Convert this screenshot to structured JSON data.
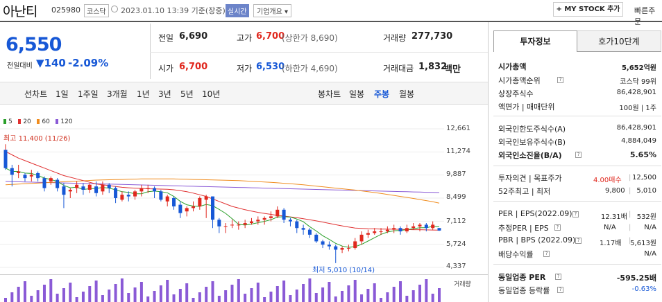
{
  "header": {
    "name": "아난티",
    "code": "025980",
    "market": "코스닥",
    "datetime": "2023.01.10 13:39 기준(장중)",
    "realtime": "실시간",
    "company_info": "기업개요",
    "mystock": "+ MY STOCK 추가",
    "quick_order": "빠른주문"
  },
  "quote": {
    "price": "6,550",
    "change_label": "전일대비",
    "change_arrow": "▼",
    "change_value": "140",
    "change_pct": "-2.09%",
    "prev_label": "전일",
    "prev": "6,690",
    "high_label": "고가",
    "high": "6,700",
    "upper_limit": "(상한가 8,690)",
    "volume_label": "거래량",
    "volume": "277,730",
    "open_label": "시가",
    "open": "6,700",
    "low_label": "저가",
    "low": "6,530",
    "lower_limit": "(하한가 4,690)",
    "amount_label": "거래대금",
    "amount": "1,832",
    "amount_unit": "백만"
  },
  "toolbar": {
    "line_label": "선차트",
    "line_items": [
      "1일",
      "1주일",
      "3개월",
      "1년",
      "3년",
      "5년",
      "10년"
    ],
    "candle_label": "봉차트",
    "candle_items": [
      "일봉",
      "주봉",
      "월봉"
    ],
    "candle_selected": "주봉"
  },
  "colors": {
    "up": "#e0281e",
    "down": "#1758d6",
    "ma5": "#2aa02a",
    "ma20": "#e03030",
    "ma60": "#f08c1e",
    "ma120": "#8a5ad6",
    "volume": "#8a5ad6"
  },
  "chart_data": {
    "type": "candlestick",
    "title": "",
    "legend": [
      "5",
      "20",
      "60",
      "120"
    ],
    "y_ticks": [
      "12,661",
      "11,274",
      "9,887",
      "8,499",
      "7,112",
      "5,724",
      "4,337"
    ],
    "ylim": [
      4337,
      12661
    ],
    "annotations": {
      "max": "최고 11,400 (11/26)",
      "min": "최저 5,010 (10/14)"
    },
    "candles": [
      [
        11400,
        10300,
        11400,
        10200
      ],
      [
        10300,
        9900,
        10500,
        9200
      ],
      [
        10000,
        10100,
        10500,
        9700
      ],
      [
        9900,
        9700,
        10000,
        9500
      ],
      [
        9800,
        9900,
        10200,
        9500
      ],
      [
        10000,
        9700,
        10100,
        9500
      ],
      [
        9700,
        9100,
        9800,
        8900
      ],
      [
        9500,
        9700,
        9800,
        9300
      ],
      [
        9600,
        9100,
        9700,
        8900
      ],
      [
        9200,
        8700,
        9400,
        7900
      ],
      [
        8900,
        9000,
        9100,
        8500
      ],
      [
        9100,
        9300,
        9500,
        8800
      ],
      [
        9200,
        9000,
        9400,
        8700
      ],
      [
        9000,
        9300,
        9400,
        8800
      ],
      [
        9200,
        8800,
        9500,
        8600
      ],
      [
        8900,
        9300,
        9500,
        8700
      ],
      [
        9300,
        9100,
        9400,
        8800
      ],
      [
        9100,
        8500,
        9200,
        8200
      ],
      [
        8400,
        8700,
        8900,
        8300
      ],
      [
        8700,
        8600,
        8900,
        8300
      ],
      [
        8600,
        8900,
        9000,
        8400
      ],
      [
        8900,
        9100,
        9300,
        8600
      ],
      [
        9100,
        9100,
        9300,
        8800
      ],
      [
        9100,
        8900,
        9200,
        8500
      ],
      [
        8900,
        8400,
        9000,
        8300
      ],
      [
        8300,
        8600,
        8700,
        8000
      ],
      [
        8500,
        8000,
        8600,
        7800
      ],
      [
        8100,
        7600,
        8300,
        7300
      ],
      [
        7700,
        7900,
        8000,
        7400
      ],
      [
        7900,
        8000,
        8300,
        7700
      ],
      [
        8000,
        8500,
        8600,
        7800
      ],
      [
        8400,
        8600,
        8700,
        7300
      ],
      [
        8600,
        7200,
        8600,
        6700
      ],
      [
        7200,
        6800,
        7300,
        6400
      ],
      [
        6800,
        6800,
        7000,
        6400
      ],
      [
        6900,
        6900,
        7200,
        6700
      ],
      [
        6900,
        6900,
        7100,
        6600
      ],
      [
        6900,
        7000,
        7200,
        6700
      ],
      [
        7000,
        7100,
        7300,
        6900
      ],
      [
        7100,
        7200,
        7400,
        6900
      ],
      [
        7200,
        7300,
        7400,
        6900
      ],
      [
        7300,
        7400,
        7700,
        7100
      ],
      [
        7400,
        7800,
        8000,
        7300
      ],
      [
        7800,
        7200,
        7900,
        7000
      ],
      [
        7200,
        7100,
        7300,
        6800
      ],
      [
        7100,
        6700,
        7200,
        6400
      ],
      [
        6700,
        6600,
        6900,
        6300
      ],
      [
        6600,
        6300,
        6700,
        6100
      ],
      [
        6300,
        5900,
        6400,
        5800
      ],
      [
        5900,
        5700,
        6000,
        5500
      ],
      [
        5700,
        5600,
        5900,
        5400
      ],
      [
        5600,
        5400,
        5700,
        5010
      ],
      [
        5400,
        5500,
        5600,
        5200
      ],
      [
        5500,
        5500,
        5700,
        5300
      ],
      [
        5500,
        5900,
        6100,
        5400
      ],
      [
        5900,
        6300,
        6500,
        5700
      ],
      [
        6300,
        6400,
        6600,
        6100
      ],
      [
        6400,
        6500,
        6700,
        6300
      ],
      [
        6500,
        6500,
        6700,
        6300
      ],
      [
        6500,
        6600,
        6800,
        6400
      ],
      [
        6600,
        6700,
        6900,
        6400
      ],
      [
        6700,
        6500,
        6800,
        6300
      ],
      [
        6500,
        6700,
        6900,
        6400
      ],
      [
        6700,
        6800,
        7000,
        6600
      ],
      [
        6800,
        6900,
        7000,
        6500
      ],
      [
        6900,
        6700,
        7000,
        6500
      ],
      [
        6700,
        6900,
        7100,
        6600
      ],
      [
        6700,
        6550,
        6700,
        6530
      ]
    ],
    "ma20": [
      11300,
      11100,
      10900,
      10750,
      10600,
      10450,
      10300,
      10150,
      10000,
      9850,
      9750,
      9650,
      9550,
      9450,
      9350,
      9300,
      9250,
      9200,
      9150,
      9120,
      9100,
      9080,
      9060,
      9050,
      9040,
      9030,
      9000,
      8950,
      8880,
      8800,
      8700,
      8600,
      8450,
      8300,
      8150,
      8000,
      7900,
      7800,
      7720,
      7640,
      7580,
      7520,
      7460,
      7420,
      7370,
      7320,
      7260,
      7200,
      7130,
      7060,
      6980,
      6900,
      6830,
      6760,
      6700,
      6680,
      6660,
      6650,
      6640,
      6640,
      6630,
      6620,
      6610,
      6600,
      6600,
      6590,
      6580,
      6570
    ],
    "ma60": [
      9300,
      9320,
      9340,
      9360,
      9380,
      9400,
      9420,
      9440,
      9460,
      9480,
      9500,
      9520,
      9540,
      9560,
      9580,
      9590,
      9600,
      9610,
      9620,
      9630,
      9640,
      9650,
      9650,
      9650,
      9650,
      9650,
      9650,
      9640,
      9630,
      9620,
      9610,
      9600,
      9590,
      9580,
      9570,
      9560,
      9550,
      9530,
      9510,
      9490,
      9470,
      9450,
      9420,
      9390,
      9360,
      9330,
      9300,
      9260,
      9220,
      9180,
      9140,
      9100,
      9060,
      9020,
      8980,
      8930,
      8880,
      8830,
      8780,
      8720,
      8660,
      8600,
      8540,
      8480,
      8410,
      8350,
      8280,
      8200
    ],
    "ma120": [
      9500,
      9490,
      9480,
      9470,
      9460,
      9450,
      9440,
      9430,
      9420,
      9410,
      9400,
      9390,
      9380,
      9370,
      9360,
      9350,
      9340,
      9330,
      9320,
      9310,
      9300,
      9290,
      9280,
      9270,
      9260,
      9250,
      9240,
      9230,
      9220,
      9210,
      9200,
      9190,
      9180,
      9170,
      9160,
      9150,
      9140,
      9130,
      9120,
      9110,
      9100,
      9090,
      9080,
      9070,
      9060,
      9050,
      9040,
      9030,
      9020,
      9010,
      9000,
      8990,
      8980,
      8970,
      8960,
      8950,
      8940,
      8930,
      8920,
      8910,
      8900,
      8890,
      8880,
      8870,
      8860,
      8850,
      8840,
      8830
    ],
    "volume_label": "거래량"
  },
  "panel": {
    "tab_invest": "투자정보",
    "tab_hoga": "호가10단계",
    "rows1": [
      [
        "시가총액",
        "5,652억원"
      ],
      [
        "시가총액순위",
        "코스닥 99위"
      ],
      [
        "상장주식수",
        "86,428,901"
      ],
      [
        "액면가 | 매매단위",
        "100원 | 1주"
      ]
    ],
    "rows2": [
      [
        "외국인한도주식수(A)",
        "86,428,901"
      ],
      [
        "외국인보유주식수(B)",
        "4,884,049"
      ],
      [
        "외국인소진율(B/A)",
        "5.65%"
      ]
    ],
    "opinion_label": "투자의견 | 목표주가",
    "opinion": "4.00매수",
    "target": "12,500",
    "w52_label": "52주최고 | 최저",
    "w52_high": "9,800",
    "w52_low": "5,010",
    "per_label": "PER | EPS(2022.09)",
    "per": "12.31배",
    "eps": "532원",
    "est_label": "추정PER | EPS",
    "est_per": "N/A",
    "est_eps": "N/A",
    "pbr_label": "PBR | BPS (2022.09)",
    "pbr": "1.17배",
    "bps": "5,613원",
    "div_label": "배당수익률",
    "div": "N/A",
    "sector_per_label": "동일업종 PER",
    "sector_per": "-595.25배",
    "sector_chg_label": "동일업종 등락률",
    "sector_chg": "-0.63%"
  }
}
